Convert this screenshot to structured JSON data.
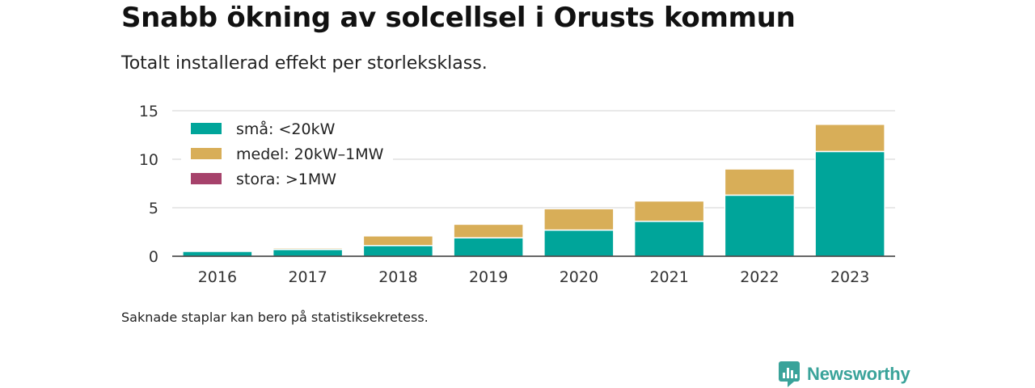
{
  "title": "Snabb ökning av solcellsel i Orusts kommun",
  "subtitle": "Totalt installerad effekt per storleksklass.",
  "footnote": "Saknade staplar kan bero på statistiksekretess.",
  "brand": {
    "name": "Newsworthy",
    "icon": "newsworthy-logo-icon",
    "color": "#3aa39a"
  },
  "chart_data": {
    "type": "bar",
    "stacked": true,
    "categories": [
      "2016",
      "2017",
      "2018",
      "2019",
      "2020",
      "2021",
      "2022",
      "2023"
    ],
    "series": [
      {
        "name": "små: <20kW",
        "color": "#00a59a",
        "values": [
          0.5,
          0.7,
          1.1,
          1.9,
          2.7,
          3.6,
          6.3,
          10.8
        ]
      },
      {
        "name": "medel: 20kW–1MW",
        "color": "#d8ae58",
        "values": [
          0.0,
          0.15,
          1.0,
          1.4,
          2.2,
          2.1,
          2.7,
          2.8
        ]
      },
      {
        "name": "stora: >1MW",
        "color": "#a6426b",
        "values": [
          0,
          0,
          0,
          0,
          0,
          0,
          0,
          0
        ]
      }
    ],
    "yticks": [
      0,
      5,
      10,
      15
    ],
    "ylim": [
      0,
      15
    ],
    "grid": true,
    "legend_position": "top-left",
    "xlabel": "",
    "ylabel": ""
  }
}
